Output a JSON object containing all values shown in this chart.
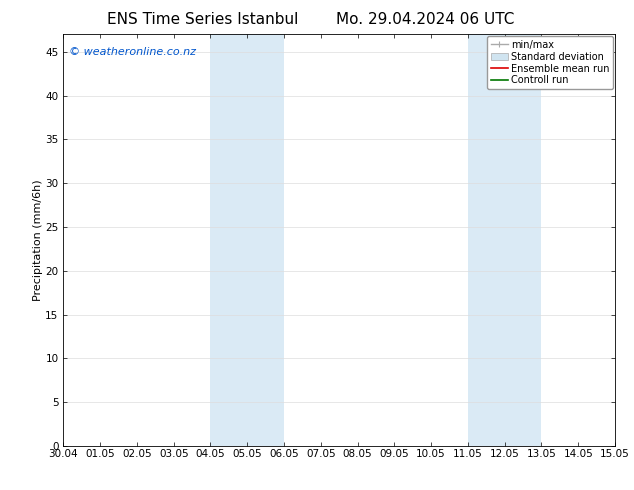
{
  "title": "ENS Time Series Istanbul",
  "title2": "Mo. 29.04.2024 06 UTC",
  "ylabel": "Precipitation (mm/6h)",
  "watermark": "© weatheronline.co.nz",
  "ylim": [
    0,
    47
  ],
  "yticks": [
    0,
    5,
    10,
    15,
    20,
    25,
    30,
    35,
    40,
    45
  ],
  "xtick_labels": [
    "30.04",
    "01.05",
    "02.05",
    "03.05",
    "04.05",
    "05.05",
    "06.05",
    "07.05",
    "08.05",
    "09.05",
    "10.05",
    "11.05",
    "12.05",
    "13.05",
    "14.05",
    "15.05"
  ],
  "shaded_regions": [
    {
      "start": 4,
      "end": 6
    },
    {
      "start": 11,
      "end": 13
    }
  ],
  "shaded_color": "#daeaf5",
  "background_color": "#ffffff",
  "grid_color": "#dddddd",
  "grid_lw": 0.5,
  "title_fontsize": 11,
  "axis_label_fontsize": 8,
  "tick_fontsize": 7.5,
  "watermark_color": "#0055cc",
  "watermark_fontsize": 8,
  "legend_fontsize": 7,
  "minmax_color": "#aaaaaa",
  "std_color": "#d0e4f0",
  "ensemble_color": "#dd0000",
  "control_color": "#007700"
}
